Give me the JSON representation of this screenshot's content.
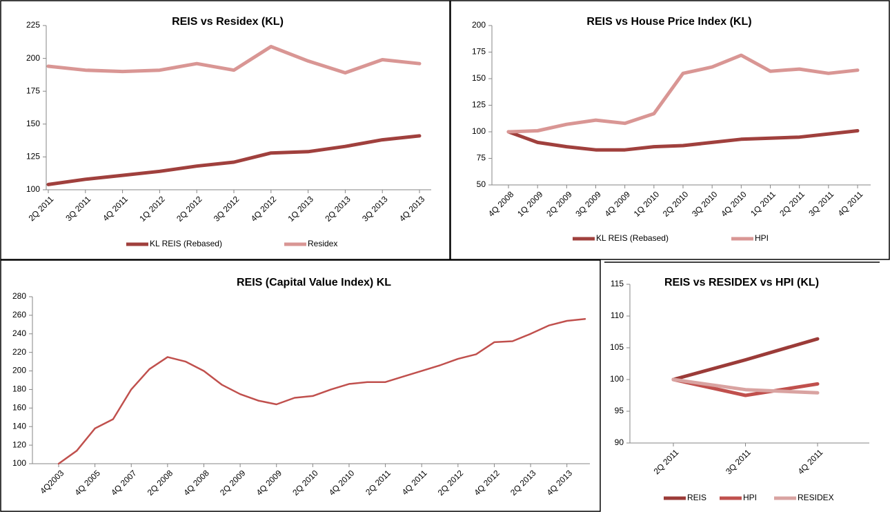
{
  "chart_data": [
    {
      "type": "line",
      "title": "REIS vs Residex (KL)",
      "categories": [
        "2Q 2011",
        "3Q 2011",
        "4Q 2011",
        "1Q 2012",
        "2Q 2012",
        "3Q 2012",
        "4Q 2012",
        "1Q 2013",
        "2Q 2013",
        "3Q 2013",
        "4Q 2013"
      ],
      "series": [
        {
          "name": "KL REIS (Rebased)",
          "color": "#a0403d",
          "values": [
            104,
            108,
            111,
            114,
            118,
            121,
            128,
            129,
            133,
            138,
            141
          ]
        },
        {
          "name": "Residex",
          "color": "#d99694",
          "values": [
            194,
            191,
            190,
            191,
            196,
            191,
            209,
            198,
            189,
            199,
            196
          ]
        }
      ],
      "ylim": [
        100,
        225
      ],
      "yticks": [
        100,
        125,
        150,
        175,
        200,
        225
      ],
      "legend": "bottom"
    },
    {
      "type": "line",
      "title": "REIS vs House Price Index (KL)",
      "categories": [
        "4Q 2008",
        "1Q 2009",
        "2Q 2009",
        "3Q 2009",
        "4Q 2009",
        "1Q 2010",
        "2Q 2010",
        "3Q 2010",
        "4Q 2010",
        "1Q 2011",
        "2Q 2011",
        "3Q 2011",
        "4Q 2011"
      ],
      "series": [
        {
          "name": "KL REIS (Rebased)",
          "color": "#a0403d",
          "values": [
            100,
            90,
            86,
            83,
            83,
            86,
            87,
            90,
            93,
            94,
            95,
            98,
            101
          ]
        },
        {
          "name": "HPI",
          "color": "#d99694",
          "values": [
            100,
            101,
            107,
            111,
            108,
            117,
            155,
            161,
            172,
            157,
            159,
            155,
            158
          ]
        }
      ],
      "ylim": [
        50,
        200
      ],
      "yticks": [
        50,
        75,
        100,
        125,
        150,
        175,
        200
      ],
      "legend": "bottom"
    },
    {
      "type": "line",
      "title": "REIS (Capital Value Index) KL",
      "categories": [
        "4Q2003",
        null,
        "4Q 2005",
        null,
        "4Q 2007",
        null,
        "2Q 2008",
        null,
        "4Q 2008",
        null,
        "2Q 2009",
        null,
        "4Q 2009",
        null,
        "2Q 2010",
        null,
        "4Q 2010",
        null,
        "2Q 2011",
        null,
        "4Q 2011",
        null,
        "2Q 2012",
        null,
        "4Q 2012",
        null,
        "2Q 2013",
        null,
        "4Q 2013",
        null
      ],
      "series": [
        {
          "color": "#c0504d",
          "values": [
            100,
            114,
            138,
            148,
            180,
            202,
            215,
            210,
            200,
            185,
            175,
            168,
            164,
            171,
            173,
            180,
            186,
            188,
            188,
            194,
            200,
            206,
            213,
            218,
            231,
            232,
            240,
            249,
            254,
            256
          ]
        }
      ],
      "ylim": [
        100,
        280
      ],
      "yticks": [
        100,
        120,
        140,
        160,
        180,
        200,
        220,
        240,
        260,
        280
      ]
    },
    {
      "type": "line",
      "title": "REIS vs RESIDEX vs HPI (KL)",
      "categories": [
        "2Q 2011",
        "3Q 2011",
        "4Q 2011"
      ],
      "series": [
        {
          "name": "REIS",
          "color": "#9b3b38",
          "values": [
            100,
            103.1,
            106.4
          ]
        },
        {
          "name": "HPI",
          "color": "#c0504d",
          "values": [
            100,
            97.5,
            99.3
          ]
        },
        {
          "name": "RESIDEX",
          "color": "#d9a3a1",
          "values": [
            100,
            98.4,
            97.9
          ]
        }
      ],
      "ylim": [
        90,
        115
      ],
      "yticks": [
        90,
        95,
        100,
        105,
        110,
        115
      ],
      "legend": "bottom"
    }
  ]
}
